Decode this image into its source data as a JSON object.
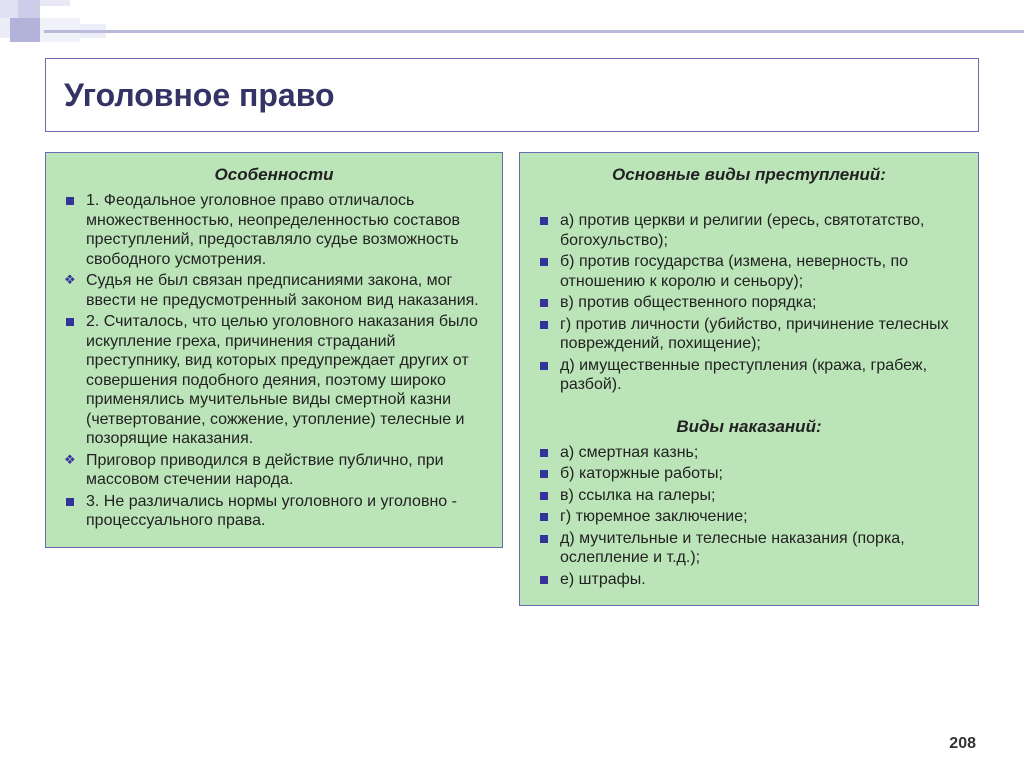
{
  "colors": {
    "panel_bg": "#bce4b9",
    "panel_border": "#6a6ab0",
    "title_color": "#333366",
    "bullet_color": "#333399",
    "deco_color": "#c8c8e8",
    "text_color": "#222222"
  },
  "page_number": "208",
  "title": "Уголовное право",
  "left": {
    "heading": "Особенности",
    "items": [
      {
        "bullet": "square",
        "text": "1. Феодальное уголовное право отличалось множественностью, неопределенностью составов преступлений, предоставляло судье возможность свободного усмотрения."
      },
      {
        "bullet": "diamond",
        "text": "Судья не был связан предписаниями закона, мог ввести не предусмотренный законом вид наказания."
      },
      {
        "bullet": "square",
        "text": "2. Считалось, что целью уголовного наказания было искупление греха, причинения страданий преступнику, вид которых предупреждает других от совершения подобного деяния, поэтому широко применялись мучительные виды смертной казни (четвертование, сожжение, утопление) телесные и позорящие наказания."
      },
      {
        "bullet": "diamond",
        "text": "Приговор приводился в действие публично, при массовом стечении народа."
      },
      {
        "bullet": "square",
        "text": "3. Не различались нормы уголовного и уголовно - процессуального права."
      }
    ]
  },
  "right": {
    "heading1": "Основные виды преступлений",
    "items1": [
      {
        "bullet": "square",
        "text": "а) против церкви и религии (ересь, святотатство, богохульство);"
      },
      {
        "bullet": "square",
        "text": "б) против государства (измена, неверность, по отношению к королю и сеньору);"
      },
      {
        "bullet": "square",
        "text": "в) против общественного порядка;"
      },
      {
        "bullet": "square",
        "text": "г) против личности (убийство, причинение телесных повреждений, похищение);"
      },
      {
        "bullet": "square",
        "text": "д) имущественные преступления (кража, грабеж, разбой)."
      }
    ],
    "heading2": "Виды наказаний",
    "items2": [
      {
        "bullet": "square",
        "text": "а) смертная казнь;"
      },
      {
        "bullet": "square",
        "text": "б) каторжные работы;"
      },
      {
        "bullet": "square",
        "text": "в) ссылка на галеры;"
      },
      {
        "bullet": "square",
        "text": "г) тюремное заключение;"
      },
      {
        "bullet": "square",
        "text": "д) мучительные и телесные наказания (порка, ослепление и т.д.);"
      },
      {
        "bullet": "square",
        "text": "е) штрафы."
      }
    ]
  }
}
